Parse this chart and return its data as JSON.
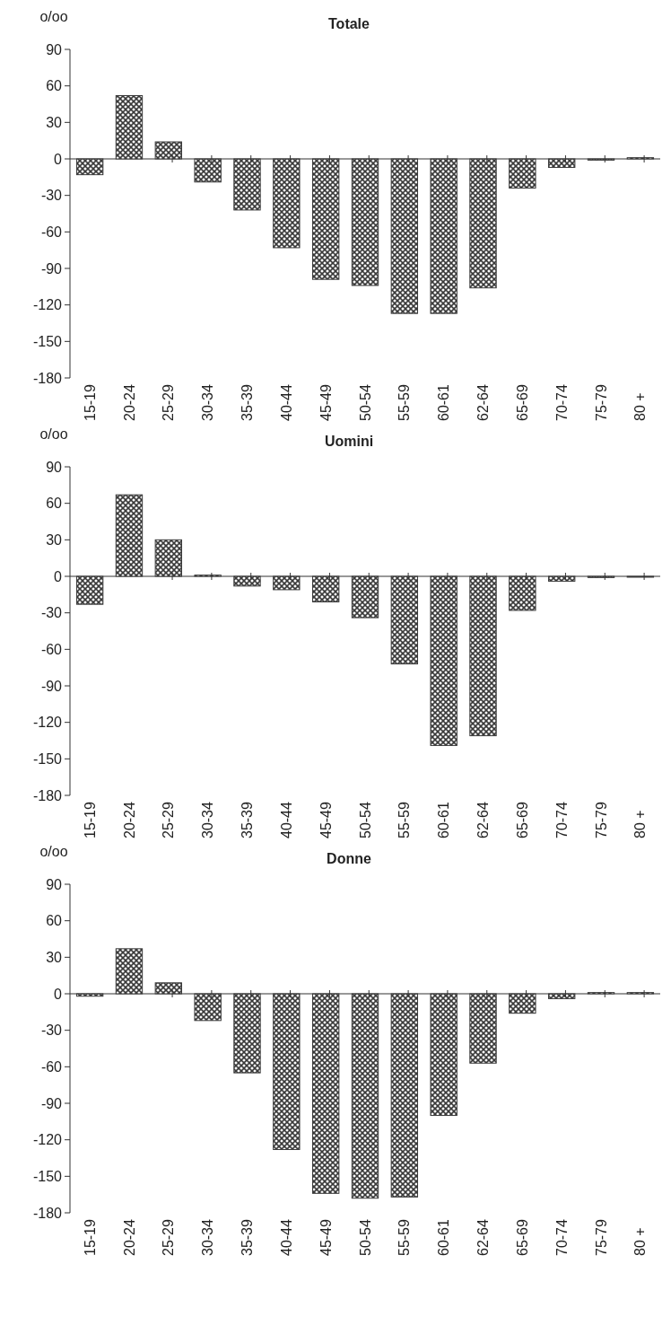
{
  "chart_data": [
    {
      "type": "bar",
      "title": "Totale",
      "ylabel": "o/oo",
      "categories": [
        "15-19",
        "20-24",
        "25-29",
        "30-34",
        "35-39",
        "40-44",
        "45-49",
        "50-54",
        "55-59",
        "60-61",
        "62-64",
        "65-69",
        "70-74",
        "75-79",
        "80 +"
      ],
      "values": [
        -13,
        52,
        14,
        -19,
        -42,
        -73,
        -99,
        -104,
        -127,
        -127,
        -106,
        -24,
        -7,
        -1,
        1
      ],
      "color": "#3a3a3a",
      "ylim": [
        -180,
        90
      ],
      "yticks": [
        -180,
        -150,
        -120,
        -90,
        -60,
        -30,
        0,
        30,
        60,
        90
      ]
    },
    {
      "type": "bar",
      "title": "Uomini",
      "ylabel": "o/oo",
      "categories": [
        "15-19",
        "20-24",
        "25-29",
        "30-34",
        "35-39",
        "40-44",
        "45-49",
        "50-54",
        "55-59",
        "60-61",
        "62-64",
        "65-69",
        "70-74",
        "75-79",
        "80 +"
      ],
      "values": [
        -23,
        67,
        30,
        1,
        -8,
        -11,
        -21,
        -34,
        -72,
        -139,
        -131,
        -28,
        -4,
        -1,
        0
      ],
      "color": "#3a3a3a",
      "ylim": [
        -180,
        90
      ],
      "yticks": [
        -180,
        -150,
        -120,
        -90,
        -60,
        -30,
        0,
        30,
        60,
        90
      ]
    },
    {
      "type": "bar",
      "title": "Donne",
      "ylabel": "o/oo",
      "categories": [
        "15-19",
        "20-24",
        "25-29",
        "30-34",
        "35-39",
        "40-44",
        "45-49",
        "50-54",
        "55-59",
        "60-61",
        "62-64",
        "65-69",
        "70-74",
        "75-79",
        "80 +"
      ],
      "values": [
        -2,
        37,
        9,
        -22,
        -65,
        -128,
        -164,
        -168,
        -167,
        -100,
        -57,
        -16,
        -4,
        1,
        1
      ],
      "color": "#3a3a3a",
      "ylim": [
        -180,
        90
      ],
      "yticks": [
        -180,
        -150,
        -120,
        -90,
        -60,
        -30,
        0,
        30,
        60,
        90
      ]
    }
  ]
}
